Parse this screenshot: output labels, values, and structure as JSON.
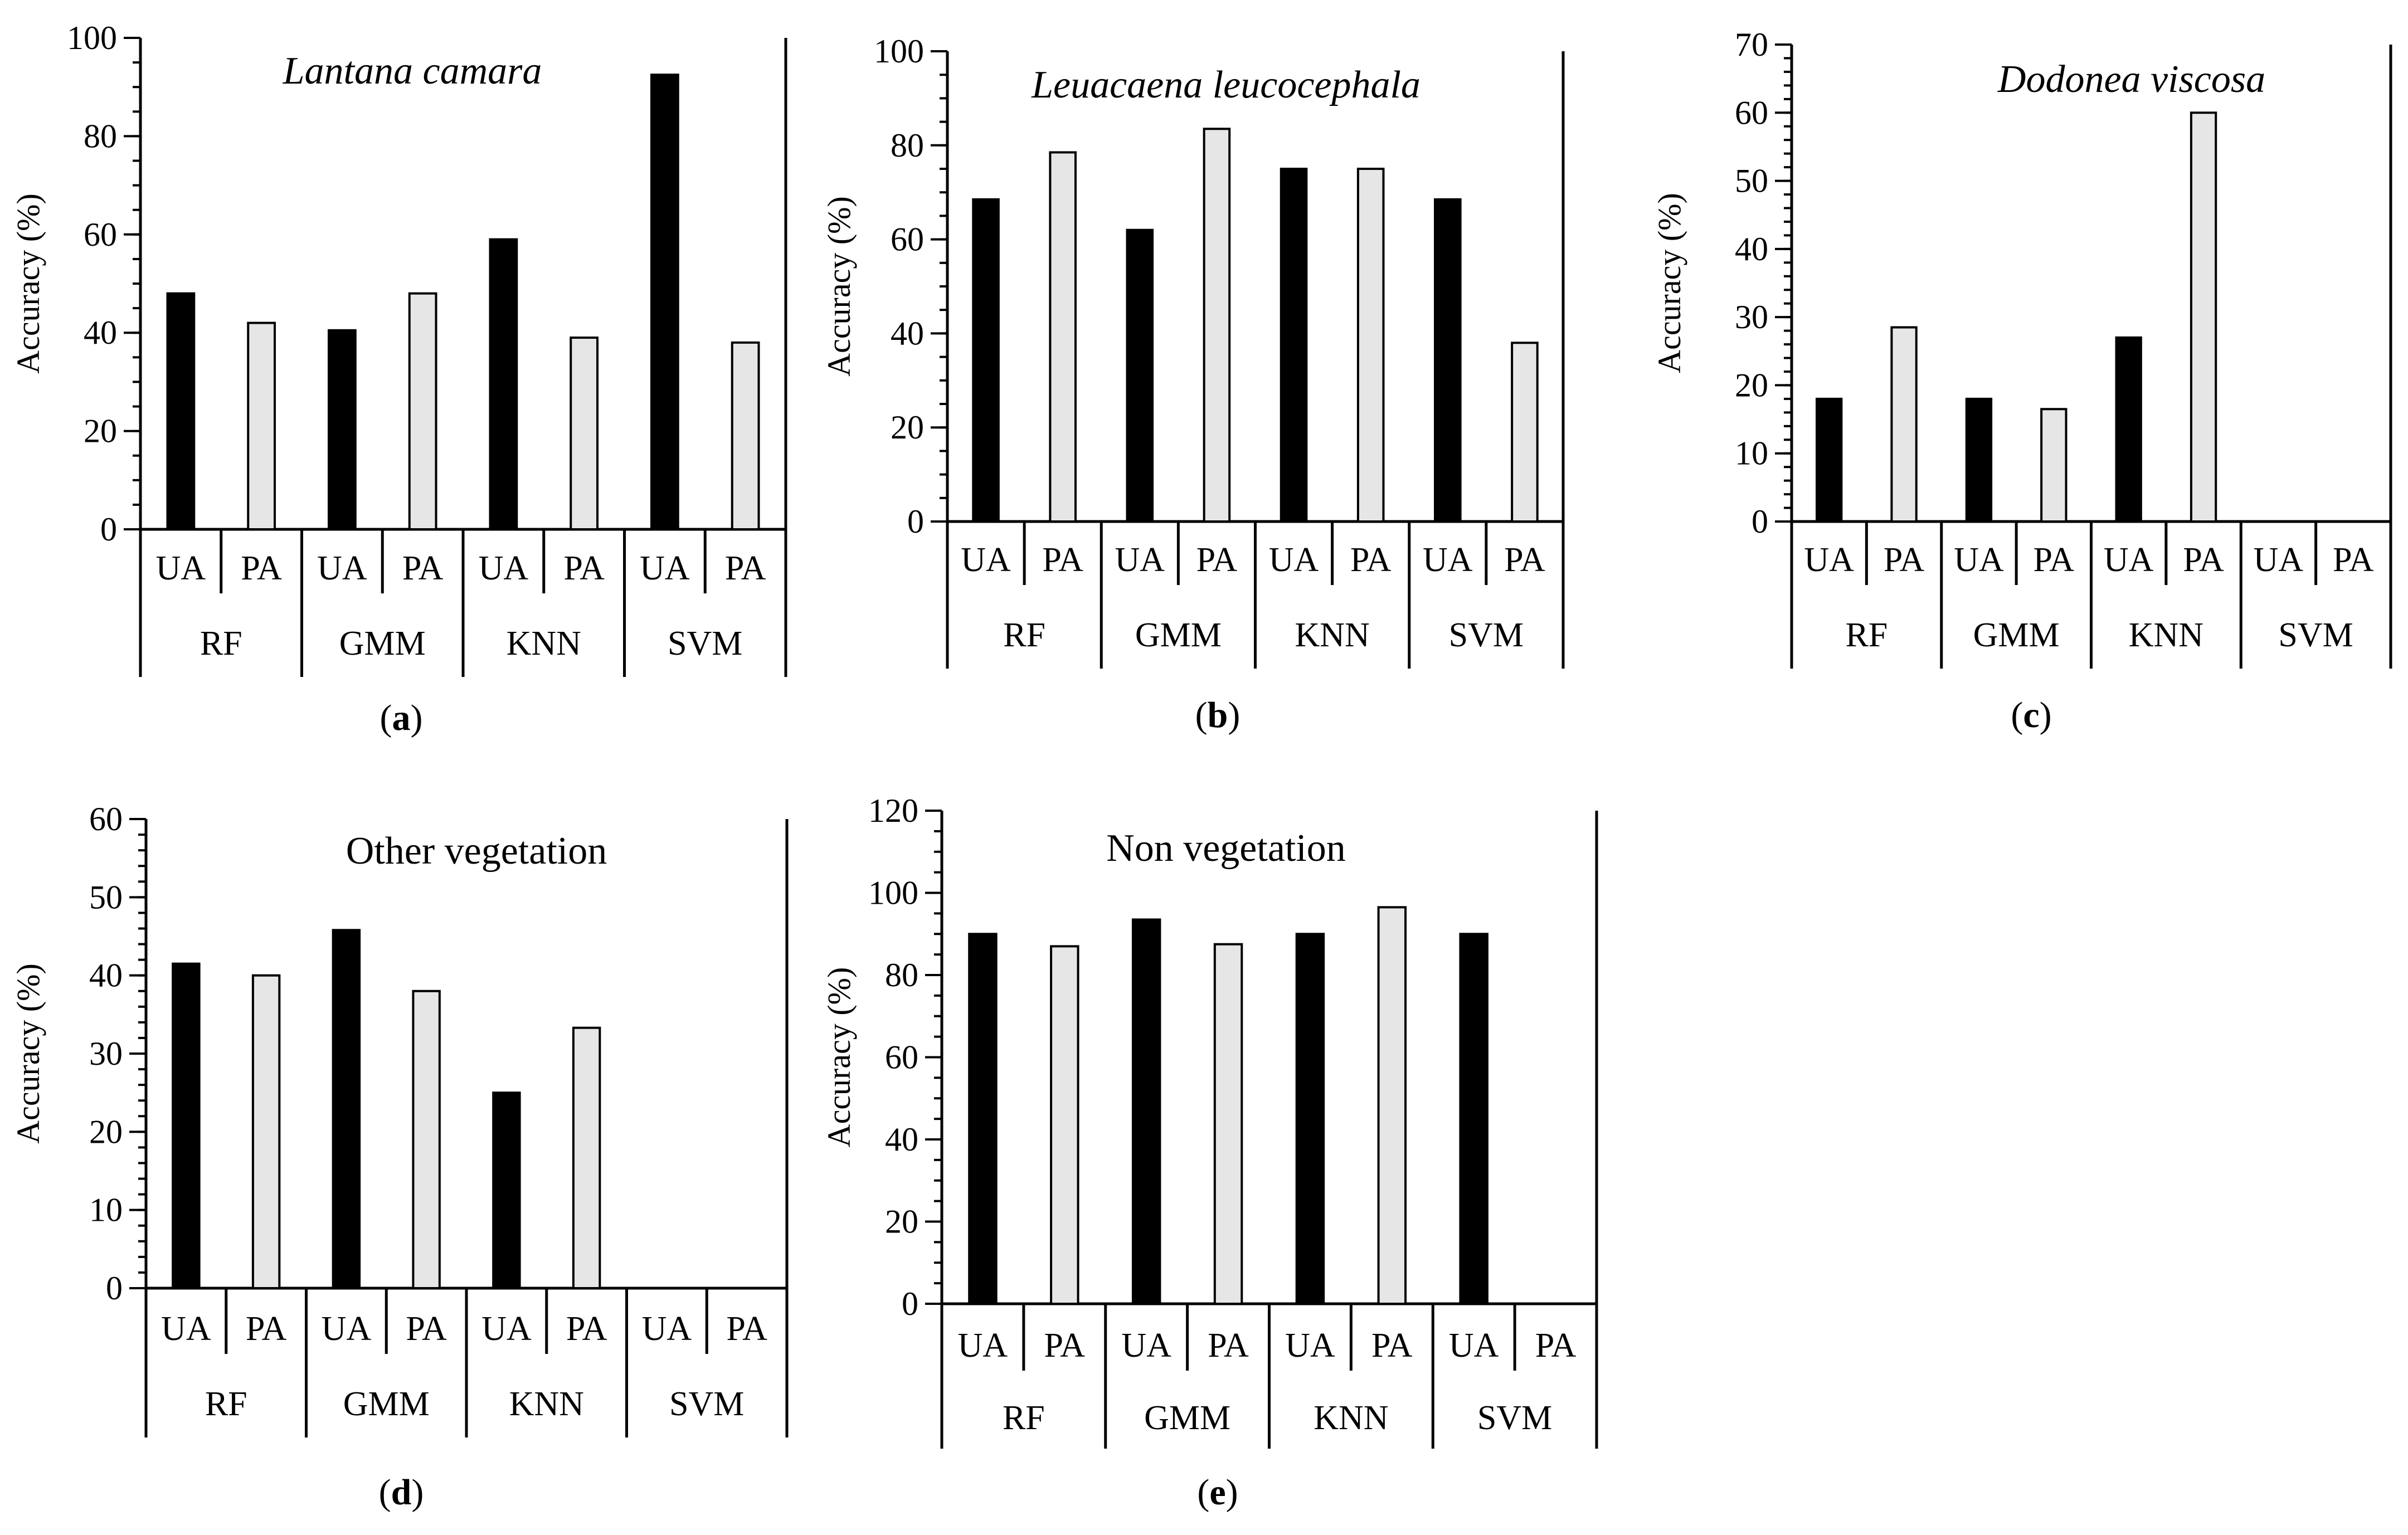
{
  "colors": {
    "ua": "#000000",
    "pa": "#e6e6e6"
  },
  "chart_data": [
    {
      "id": "a",
      "panel_label": "a",
      "type": "bar",
      "title": "Lantana camara",
      "title_italic": true,
      "ylabel": "Accuracy (%)",
      "ylim": [
        0,
        100
      ],
      "ystep": 20,
      "yminor": 5,
      "groups": [
        "RF",
        "GMM",
        "KNN",
        "SVM"
      ],
      "subgroups": [
        "UA",
        "PA"
      ],
      "series": [
        {
          "name": "UA",
          "values": [
            48,
            40.5,
            59,
            92.5
          ]
        },
        {
          "name": "PA",
          "values": [
            42,
            48,
            39,
            38
          ]
        }
      ]
    },
    {
      "id": "b",
      "panel_label": "b",
      "type": "bar",
      "title": "Leuacaena leucocephala",
      "title_italic": true,
      "ylabel": "Accuracy (%)",
      "ylim": [
        0,
        100
      ],
      "ystep": 20,
      "yminor": 5,
      "groups": [
        "RF",
        "GMM",
        "KNN",
        "SVM"
      ],
      "subgroups": [
        "UA",
        "PA"
      ],
      "series": [
        {
          "name": "UA",
          "values": [
            68.5,
            62,
            75,
            68.5
          ]
        },
        {
          "name": "PA",
          "values": [
            78.5,
            83.5,
            75,
            38
          ]
        }
      ]
    },
    {
      "id": "c",
      "panel_label": "c",
      "type": "bar",
      "title": "Dodonea viscosa",
      "title_italic": true,
      "ylabel": "Accuracy (%)",
      "ylim": [
        0,
        70
      ],
      "ystep": 10,
      "yminor": 2,
      "groups": [
        "RF",
        "GMM",
        "KNN",
        "SVM"
      ],
      "subgroups": [
        "UA",
        "PA"
      ],
      "series": [
        {
          "name": "UA",
          "values": [
            18,
            18,
            27,
            0
          ]
        },
        {
          "name": "PA",
          "values": [
            28.5,
            16.5,
            60,
            0
          ]
        }
      ]
    },
    {
      "id": "d",
      "panel_label": "d",
      "type": "bar",
      "title": "Other vegetation",
      "title_italic": false,
      "ylabel": "Accuracy (%)",
      "ylim": [
        0,
        60
      ],
      "ystep": 10,
      "yminor": 2,
      "groups": [
        "RF",
        "GMM",
        "KNN",
        "SVM"
      ],
      "subgroups": [
        "UA",
        "PA"
      ],
      "series": [
        {
          "name": "UA",
          "values": [
            41.5,
            45.8,
            25,
            0
          ]
        },
        {
          "name": "PA",
          "values": [
            40,
            38,
            33.3,
            0
          ]
        }
      ]
    },
    {
      "id": "e",
      "panel_label": "e",
      "type": "bar",
      "title": "Non vegetation",
      "title_italic": false,
      "ylabel": "Accuracy (%)",
      "ylim": [
        0,
        120
      ],
      "ystep": 20,
      "yminor": 5,
      "groups": [
        "RF",
        "GMM",
        "KNN",
        "SVM"
      ],
      "subgroups": [
        "UA",
        "PA"
      ],
      "series": [
        {
          "name": "UA",
          "values": [
            90,
            93.5,
            90,
            90
          ]
        },
        {
          "name": "PA",
          "values": [
            87,
            87.5,
            96.5,
            0
          ]
        }
      ]
    }
  ]
}
